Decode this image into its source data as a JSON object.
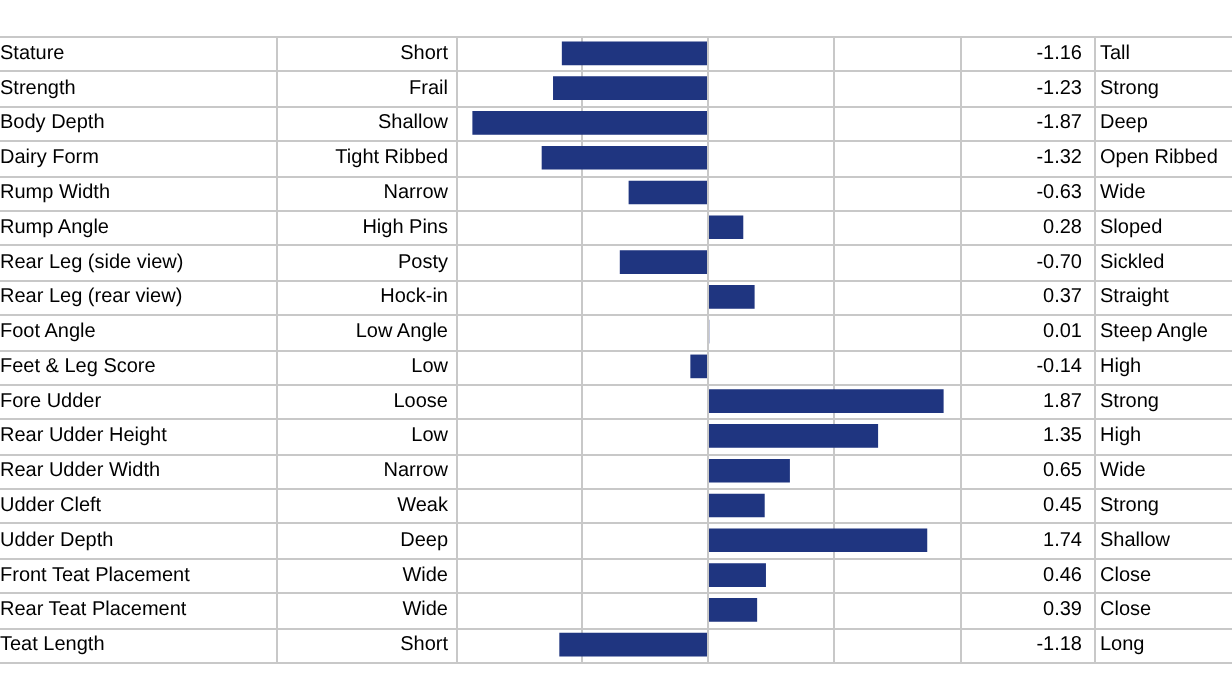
{
  "chart_data": {
    "type": "bar",
    "orientation": "horizontal",
    "categories": [
      "Stature",
      "Strength",
      "Body Depth",
      "Dairy Form",
      "Rump Width",
      "Rump Angle",
      "Rear Leg (side view)",
      "Rear Leg (rear view)",
      "Foot Angle",
      "Feet & Leg Score",
      "Fore Udder",
      "Rear Udder Height",
      "Rear Udder Width",
      "Udder Cleft",
      "Udder Depth",
      "Front Teat Placement",
      "Rear Teat Placement",
      "Teat Length"
    ],
    "series": [
      {
        "color": "#1f3580",
        "values": [
          -1.16,
          -1.23,
          -1.87,
          -1.32,
          -0.63,
          0.28,
          -0.7,
          0.37,
          0.01,
          -0.14,
          1.87,
          1.35,
          0.65,
          0.45,
          1.74,
          0.46,
          0.39,
          -1.18
        ],
        "value_labels": [
          "-1.16",
          "-1.23",
          "-1.87",
          "-1.32",
          "-0.63",
          "0.28",
          "-0.70",
          "0.37",
          "0.01",
          "-0.14",
          "1.87",
          "1.35",
          "0.65",
          "0.45",
          "1.74",
          "0.46",
          "0.39",
          "-1.18"
        ]
      }
    ],
    "xlim": [
      -2,
      2
    ],
    "xticks": [
      {
        "value": -1,
        "label": null
      },
      {
        "value": 0,
        "label": null
      },
      {
        "value": 1,
        "label": null
      }
    ],
    "tick_labels": "y",
    "grid": "x",
    "legend": false,
    "annotations": [
      "Short",
      "Frail",
      "Shallow",
      "Tight Ribbed",
      "Narrow",
      "High Pins",
      "Posty",
      "Hock-in",
      "Low Angle",
      "Low",
      "Loose",
      "Low",
      "Narrow",
      "Weak",
      "Deep",
      "Wide",
      "Wide",
      "Short",
      "Tall",
      "Strong",
      "Deep",
      "Open Ribbed",
      "Wide",
      "Sloped",
      "Sickled",
      "Straight",
      "Steep Angle",
      "High",
      "Strong",
      "High",
      "Wide",
      "Strong",
      "Shallow",
      "Close",
      "Close",
      "Long"
    ]
  }
}
